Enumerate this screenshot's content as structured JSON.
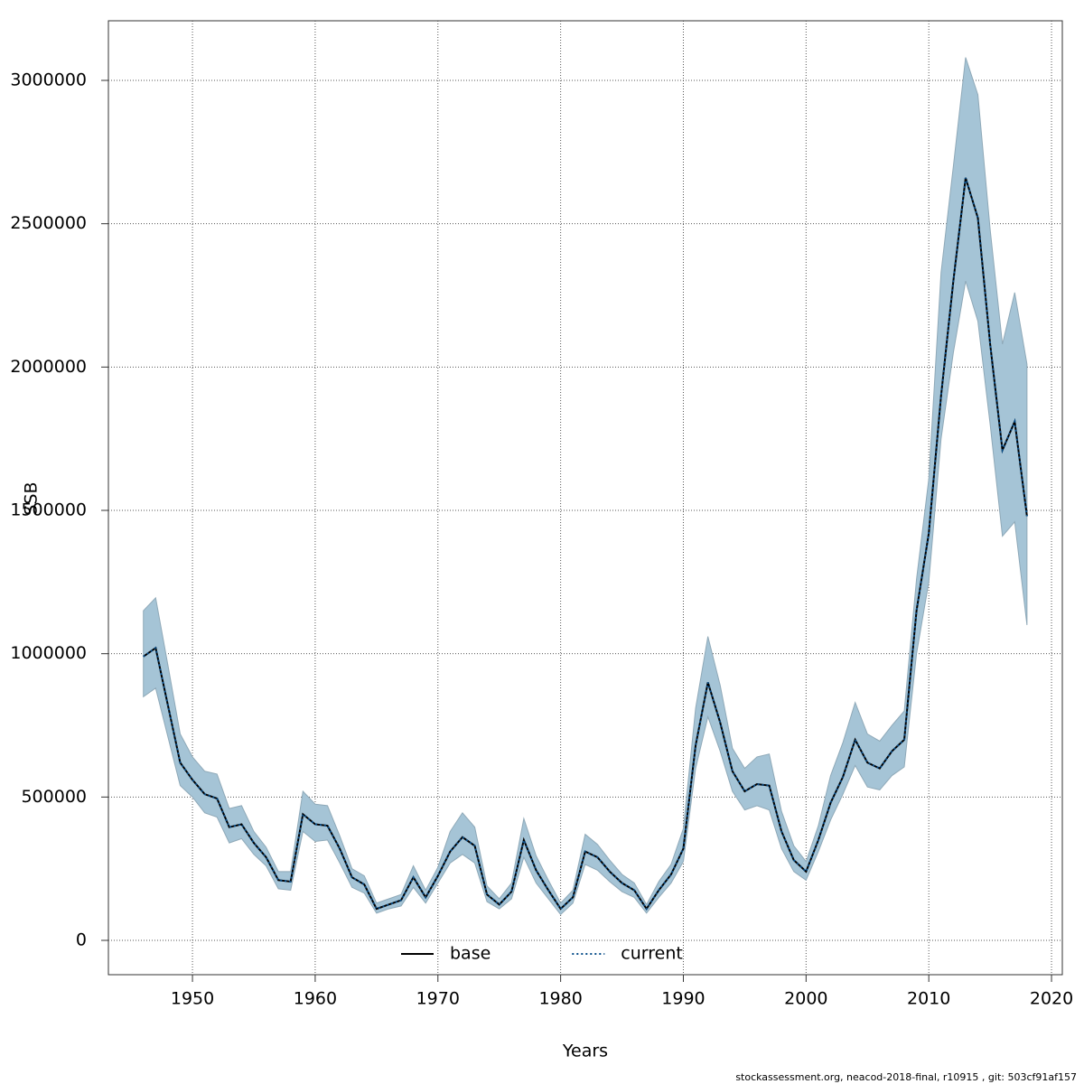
{
  "chart_data": {
    "type": "line",
    "x_label": "Years",
    "y_label": "SSB",
    "footnote": "stockassessment.org, neacod-2018-final, r10915 , git: 503cf91af157",
    "x": [
      1946,
      1947,
      1948,
      1949,
      1950,
      1951,
      1952,
      1953,
      1954,
      1955,
      1956,
      1957,
      1958,
      1959,
      1960,
      1961,
      1962,
      1963,
      1964,
      1965,
      1966,
      1967,
      1968,
      1969,
      1970,
      1971,
      1972,
      1973,
      1974,
      1975,
      1976,
      1977,
      1978,
      1979,
      1980,
      1981,
      1982,
      1983,
      1984,
      1985,
      1986,
      1987,
      1988,
      1989,
      1990,
      1991,
      1992,
      1993,
      1994,
      1995,
      1996,
      1997,
      1998,
      1999,
      2000,
      2001,
      2002,
      2003,
      2004,
      2005,
      2006,
      2007,
      2008,
      2009,
      2010,
      2011,
      2012,
      2013,
      2014,
      2015,
      2016,
      2017,
      2018
    ],
    "series": [
      {
        "name": "base",
        "color": "#000000",
        "dash": "solid",
        "values": [
          990000,
          1020000,
          820000,
          620000,
          560000,
          510000,
          495000,
          395000,
          405000,
          340000,
          290000,
          210000,
          205000,
          440000,
          405000,
          400000,
          320000,
          220000,
          195000,
          110000,
          125000,
          140000,
          220000,
          150000,
          225000,
          310000,
          360000,
          330000,
          160000,
          125000,
          170000,
          350000,
          245000,
          175000,
          110000,
          150000,
          310000,
          290000,
          240000,
          200000,
          175000,
          110000,
          175000,
          230000,
          320000,
          680000,
          900000,
          760000,
          590000,
          520000,
          545000,
          540000,
          380000,
          280000,
          240000,
          350000,
          480000,
          570000,
          700000,
          620000,
          600000,
          660000,
          700000,
          1150000,
          1420000,
          1900000,
          2300000,
          2660000,
          2520000,
          2080000,
          1710000,
          1810000,
          1480000
        ]
      },
      {
        "name": "current",
        "color": "#0a4f8a",
        "dash": "dotted",
        "values": [
          990000,
          1020000,
          820000,
          620000,
          560000,
          510000,
          495000,
          395000,
          405000,
          340000,
          290000,
          210000,
          205000,
          440000,
          405000,
          400000,
          320000,
          220000,
          195000,
          110000,
          125000,
          140000,
          220000,
          150000,
          225000,
          310000,
          360000,
          330000,
          160000,
          125000,
          170000,
          350000,
          245000,
          175000,
          110000,
          150000,
          310000,
          290000,
          240000,
          200000,
          175000,
          110000,
          175000,
          230000,
          320000,
          680000,
          900000,
          760000,
          590000,
          520000,
          545000,
          540000,
          380000,
          280000,
          240000,
          350000,
          480000,
          570000,
          700000,
          620000,
          600000,
          660000,
          700000,
          1150000,
          1420000,
          1900000,
          2300000,
          2660000,
          2520000,
          2080000,
          1710000,
          1810000,
          1480000
        ]
      }
    ],
    "band": {
      "color": "#a5c4d6",
      "low": [
        850000,
        880000,
        710000,
        540000,
        500000,
        445000,
        430000,
        340000,
        355000,
        300000,
        260000,
        180000,
        175000,
        380000,
        345000,
        350000,
        270000,
        185000,
        165000,
        95000,
        110000,
        120000,
        185000,
        130000,
        200000,
        270000,
        300000,
        270000,
        135000,
        110000,
        145000,
        290000,
        200000,
        145000,
        90000,
        130000,
        265000,
        245000,
        205000,
        170000,
        150000,
        95000,
        150000,
        200000,
        275000,
        600000,
        780000,
        660000,
        520000,
        455000,
        470000,
        455000,
        320000,
        240000,
        210000,
        310000,
        420000,
        510000,
        610000,
        535000,
        525000,
        575000,
        605000,
        1000000,
        1250000,
        1750000,
        2050000,
        2300000,
        2160000,
        1800000,
        1410000,
        1460000,
        1100000
      ],
      "high": [
        1150000,
        1195000,
        960000,
        720000,
        640000,
        590000,
        580000,
        460000,
        470000,
        380000,
        325000,
        240000,
        240000,
        520000,
        475000,
        470000,
        365000,
        250000,
        225000,
        130000,
        145000,
        160000,
        260000,
        175000,
        255000,
        380000,
        445000,
        395000,
        190000,
        145000,
        200000,
        425000,
        295000,
        210000,
        130000,
        175000,
        370000,
        335000,
        280000,
        230000,
        200000,
        125000,
        205000,
        265000,
        390000,
        810000,
        1060000,
        890000,
        670000,
        600000,
        640000,
        650000,
        450000,
        330000,
        275000,
        400000,
        575000,
        690000,
        830000,
        720000,
        695000,
        750000,
        800000,
        1260000,
        1610000,
        2330000,
        2700000,
        3080000,
        2950000,
        2480000,
        2080000,
        2260000,
        2010000
      ]
    },
    "xlim": [
      1943.15,
      2020.88
    ],
    "ylim": [
      -119760,
      3208000
    ],
    "xticks": [
      1950,
      1960,
      1970,
      1980,
      1990,
      2000,
      2010,
      2020
    ],
    "yticks": [
      0,
      500000,
      1000000,
      1500000,
      2000000,
      2500000,
      3000000
    ],
    "grid": true,
    "legend": "bottom"
  }
}
